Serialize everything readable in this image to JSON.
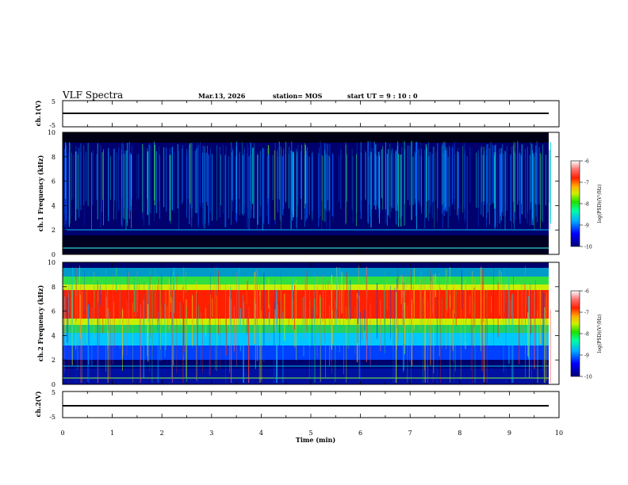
{
  "header": {
    "title": "VLF Spectra",
    "date": "Mar.13, 2026",
    "station": "station= MOS",
    "start": "start  UT =   9 : 10 : 0"
  },
  "chart_data": [
    {
      "type": "line",
      "ylabel": "ch.1(V)",
      "ylim": [
        -5,
        5
      ],
      "y_ticks": [
        "5",
        "-5"
      ],
      "level": 0
    },
    {
      "type": "heatmap",
      "ylabel": "ch.1  Frequency  (kHz)",
      "ylim": [
        0,
        10
      ],
      "y_ticks": [
        "0",
        "2",
        "4",
        "6",
        "8",
        "10"
      ],
      "colorbar": {
        "label": "log(PSD)(V²/Hz)",
        "range": [
          -10,
          -6
        ],
        "ticks": [
          "-6",
          "-7",
          "-8",
          "-9",
          "-10"
        ]
      }
    },
    {
      "type": "heatmap",
      "ylabel": "ch.2  Frequency  (kHz)",
      "ylim": [
        0,
        10
      ],
      "y_ticks": [
        "0",
        "2",
        "4",
        "6",
        "8",
        "10"
      ],
      "colorbar": {
        "label": "log(PSD)(V²/Hz)",
        "range": [
          -10,
          -6
        ],
        "ticks": [
          "-6",
          "-7",
          "-8",
          "-9",
          "-10"
        ]
      }
    },
    {
      "type": "line",
      "ylabel": "ch.2(V)",
      "ylim": [
        -5,
        5
      ],
      "y_ticks": [
        "5",
        "-5"
      ],
      "level": 0
    }
  ],
  "x_axis": {
    "label": "Time  (min)",
    "xlim": [
      0,
      10
    ],
    "ticks": [
      "0",
      "1",
      "2",
      "3",
      "4",
      "5",
      "6",
      "7",
      "8",
      "9",
      "10"
    ],
    "data_end": 9.85
  },
  "colors": {
    "ink": "#000000",
    "background": "#ffffff"
  }
}
